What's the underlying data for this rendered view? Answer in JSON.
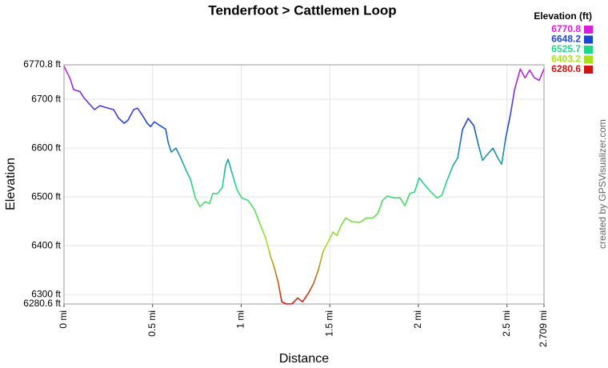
{
  "chart_data": {
    "type": "line",
    "title": "Tenderfoot > Cattlemen Loop",
    "x_label": "Distance",
    "y_label": "Elevation",
    "credit": "created by GPSVisualizer.com",
    "legend": {
      "title": "Elevation (ft)",
      "stops": [
        {
          "value": 6770.8,
          "color": "#d81ed8"
        },
        {
          "value": 6648.2,
          "color": "#1a46d0"
        },
        {
          "value": 6525.7,
          "color": "#1ed88a"
        },
        {
          "value": 6403.2,
          "color": "#a8e01e"
        },
        {
          "value": 6280.6,
          "color": "#d01414"
        }
      ]
    },
    "xlim": [
      0,
      2.709
    ],
    "ylim": [
      6280.6,
      6770.8
    ],
    "xticks": [
      {
        "value": 0,
        "label": "0 mi"
      },
      {
        "value": 0.5,
        "label": "0.5 mi"
      },
      {
        "value": 1,
        "label": "1 mi"
      },
      {
        "value": 1.5,
        "label": "1.5 mi"
      },
      {
        "value": 2,
        "label": "2 mi"
      },
      {
        "value": 2.5,
        "label": "2.5 mi"
      },
      {
        "value": 2.709,
        "label": "2.709 mi"
      }
    ],
    "yticks": [
      {
        "value": 6280.6,
        "label": "6280.6 ft"
      },
      {
        "value": 6300,
        "label": "6300 ft"
      },
      {
        "value": 6400,
        "label": "6400 ft"
      },
      {
        "value": 6500,
        "label": "6500 ft"
      },
      {
        "value": 6600,
        "label": "6600 ft"
      },
      {
        "value": 6700,
        "label": "6700 ft"
      },
      {
        "value": 6770.8,
        "label": "6770.8 ft"
      }
    ],
    "grid": true,
    "series": [
      {
        "name": "Elevation",
        "x": [
          0,
          0.036,
          0.054,
          0.09,
          0.113,
          0.145,
          0.172,
          0.203,
          0.248,
          0.28,
          0.307,
          0.339,
          0.361,
          0.393,
          0.415,
          0.443,
          0.47,
          0.488,
          0.51,
          0.542,
          0.574,
          0.587,
          0.605,
          0.632,
          0.659,
          0.687,
          0.714,
          0.741,
          0.768,
          0.795,
          0.822,
          0.84,
          0.867,
          0.894,
          0.912,
          0.926,
          0.949,
          0.976,
          1.003,
          1.039,
          1.075,
          1.107,
          1.138,
          1.165,
          1.184,
          1.21,
          1.229,
          1.256,
          1.287,
          1.319,
          1.346,
          1.378,
          1.409,
          1.436,
          1.463,
          1.491,
          1.518,
          1.54,
          1.563,
          1.59,
          1.626,
          1.671,
          1.707,
          1.743,
          1.771,
          1.798,
          1.825,
          1.861,
          1.897,
          1.924,
          1.951,
          1.978,
          2.005,
          2.033,
          2.069,
          2.105,
          2.132,
          2.159,
          2.195,
          2.222,
          2.249,
          2.281,
          2.313,
          2.34,
          2.362,
          2.394,
          2.421,
          2.448,
          2.47,
          2.493,
          2.52,
          2.543,
          2.575,
          2.602,
          2.628,
          2.655,
          2.682,
          2.709
        ],
        "values": [
          6768,
          6741,
          6720,
          6716,
          6703,
          6690,
          6679,
          6687,
          6682,
          6679,
          6662,
          6651,
          6657,
          6679,
          6682,
          6667,
          6651,
          6644,
          6654,
          6646,
          6639,
          6613,
          6592,
          6600,
          6580,
          6556,
          6536,
          6498,
          6480,
          6490,
          6487,
          6507,
          6507,
          6520,
          6564,
          6577,
          6548,
          6515,
          6498,
          6493,
          6474,
          6444,
          6416,
          6379,
          6359,
          6323,
          6285,
          6280.6,
          6281,
          6293,
          6285,
          6302,
          6323,
          6351,
          6389,
          6408,
          6428,
          6421,
          6441,
          6457,
          6449,
          6448,
          6457,
          6457,
          6466,
          6493,
          6502,
          6498,
          6498,
          6482,
          6507,
          6510,
          6539,
          6526,
          6511,
          6498,
          6503,
          6531,
          6564,
          6580,
          6638,
          6661,
          6646,
          6605,
          6575,
          6589,
          6600,
          6580,
          6567,
          6621,
          6670,
          6720,
          6762,
          6744,
          6760,
          6744,
          6739,
          6762
        ]
      }
    ]
  }
}
